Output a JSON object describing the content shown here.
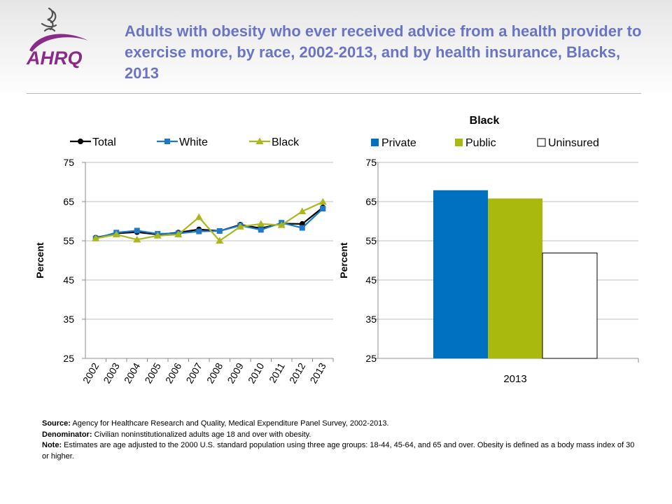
{
  "title": "Adults with obesity who ever received advice from a health provider to exercise more, by race, 2002-2013, and by health insurance, Blacks, 2013",
  "logo": {
    "name": "hhs-ahrq-logo",
    "text": "AHRQ",
    "color": "#8a2b8a"
  },
  "colors": {
    "title": "#6a74c4",
    "total": "#000000",
    "white": "#1f79c8",
    "black": "#aab81b",
    "private": "#0070c0",
    "public": "#a9b90e",
    "uninsured": "#ffffff"
  },
  "chart_data": [
    {
      "type": "line",
      "title": "",
      "ylabel": "Percent",
      "ylim": [
        25,
        75
      ],
      "yticks": [
        "75",
        "65",
        "55",
        "45",
        "35",
        "25"
      ],
      "categories": [
        "2002",
        "2003",
        "2004",
        "2005",
        "2006",
        "2007",
        "2008",
        "2009",
        "2010",
        "2011",
        "2012",
        "2013"
      ],
      "legend_position": "top",
      "grid": true,
      "series": [
        {
          "name": "Total",
          "marker": "circle",
          "values": [
            55.8,
            56.9,
            57.2,
            56.6,
            57.1,
            57.9,
            57.5,
            59.1,
            58.2,
            59.4,
            59.3,
            63.5
          ]
        },
        {
          "name": "White",
          "marker": "square",
          "values": [
            55.6,
            57.1,
            57.6,
            56.8,
            56.9,
            57.4,
            57.5,
            58.9,
            57.8,
            59.6,
            58.3,
            63.2
          ]
        },
        {
          "name": "Black",
          "marker": "triangle",
          "values": [
            55.6,
            56.6,
            55.3,
            56.3,
            56.6,
            61.0,
            55.0,
            58.6,
            59.3,
            59.0,
            62.5,
            64.9
          ]
        }
      ]
    },
    {
      "type": "bar",
      "title": "Black",
      "ylabel": "Percent",
      "ylim": [
        25,
        75
      ],
      "yticks": [
        "75",
        "65",
        "55",
        "45",
        "35",
        "25"
      ],
      "categories": [
        "2013"
      ],
      "legend_position": "top",
      "grid": true,
      "series": [
        {
          "name": "Private",
          "values": [
            67.9
          ]
        },
        {
          "name": "Public",
          "values": [
            65.8
          ]
        },
        {
          "name": "Uninsured",
          "values": [
            51.9
          ]
        }
      ]
    }
  ],
  "notes": [
    {
      "label": "Source:",
      "text": " Agency for Healthcare Research and Quality, Medical Expenditure Panel Survey, 2002-2013."
    },
    {
      "label": "Denominator:",
      "text": " Civilian noninstitutionalized adults age 18 and over with obesity."
    },
    {
      "label": "Note:",
      "text": " Estimates are age adjusted to the 2000 U.S. standard population using three age groups: 18-44, 45-64, and 65 and over. Obesity is defined as a body mass index of 30 or higher."
    }
  ]
}
